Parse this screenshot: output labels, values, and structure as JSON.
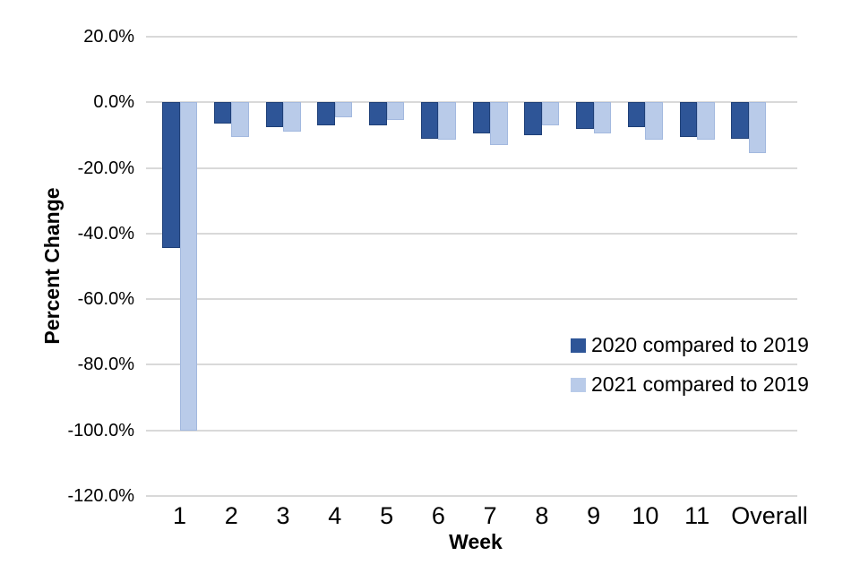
{
  "chart_data": {
    "type": "bar",
    "title": "",
    "xlabel": "Week",
    "ylabel": "Percent Change",
    "categories": [
      "1",
      "2",
      "3",
      "4",
      "5",
      "6",
      "7",
      "8",
      "9",
      "10",
      "11",
      "Overall"
    ],
    "series": [
      {
        "name": "2020 compared to 2019",
        "color": "#2e5597",
        "border_color": "#1f4078",
        "values": [
          -44.5,
          -6.5,
          -7.5,
          -7.0,
          -7.0,
          -11.0,
          -9.5,
          -10.0,
          -8.0,
          -7.5,
          -10.5,
          -11.0
        ]
      },
      {
        "name": "2021 compared to 2019",
        "color": "#b9cbe9",
        "border_color": "#a3b9df",
        "values": [
          -100.0,
          -10.5,
          -9.0,
          -4.5,
          -5.5,
          -11.5,
          -13.0,
          -7.0,
          -9.5,
          -11.5,
          -11.5,
          -15.5
        ]
      }
    ],
    "ylim": [
      -120,
      20
    ],
    "ytick_values": [
      20,
      0,
      -20,
      -40,
      -60,
      -80,
      -100,
      -120
    ],
    "ytick_labels": [
      "20.0%",
      "0.0%",
      "-20.0%",
      "-40.0%",
      "-60.0%",
      "-80.0%",
      "-100.0%",
      "-120.0%"
    ],
    "grid": true,
    "gridline_color": "#d9d9d9",
    "legend_position": "inside-right",
    "background_color": "#ffffff"
  }
}
